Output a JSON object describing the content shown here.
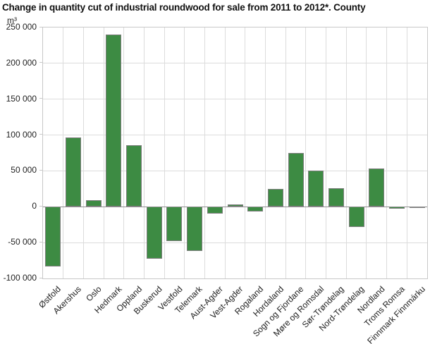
{
  "header": {
    "title": "Change in quantity cut of industrial roundwood for sale from 2011 to 2012*. County",
    "unit": "m³"
  },
  "chart_data": {
    "type": "bar",
    "title": "Change in quantity cut of industrial roundwood for sale from 2011 to 2012*. County",
    "ylabel": "m³",
    "xlabel": "",
    "categories": [
      "Østfold",
      "Akershus",
      "Oslo",
      "Hedmark",
      "Oppland",
      "Buskerud",
      "Vestfold",
      "Telemark",
      "Aust-Agder",
      "Vest-Agder",
      "Rogaland",
      "Hordaland",
      "Sogn og Fjordane",
      "Møre og Romsdal",
      "Sør-Trøndelag",
      "Nord-Trøndelag",
      "Nordland",
      "Troms Romsa",
      "Finnmark Finnmárku"
    ],
    "values": [
      -83000,
      97000,
      9000,
      240000,
      86000,
      -72000,
      -48000,
      -62000,
      -10000,
      3000,
      -7000,
      25000,
      75000,
      50000,
      26000,
      -28000,
      53000,
      -3000,
      -500
    ],
    "ylim": [
      -100000,
      250000
    ],
    "ytick_step": 50000,
    "yticks": [
      250000,
      200000,
      150000,
      100000,
      50000,
      0,
      -50000,
      -100000
    ],
    "ytick_labels": [
      "250 000",
      "200 000",
      "150 000",
      "100 000",
      "50 000",
      "0",
      "-50 000",
      "-100 000"
    ],
    "grid": "horizontal and vertical gridlines, zero line emphasized",
    "legend": "none",
    "bar_color": "#3d8b43",
    "bar_border_color": "#7d7d7d",
    "gridline_color": "#dcdcdc",
    "zero_line_color": "#8f8f8f",
    "plot_border_color": "#c8c8c8"
  }
}
